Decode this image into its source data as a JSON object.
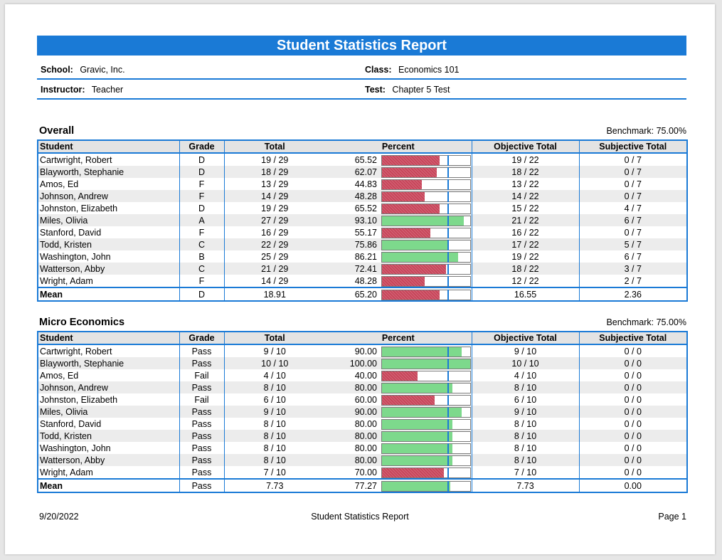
{
  "report": {
    "title": "Student Statistics Report",
    "school_label": "School:",
    "school": "Gravic, Inc.",
    "class_label": "Class:",
    "class": "Economics 101",
    "instructor_label": "Instructor:",
    "instructor": "Teacher",
    "test_label": "Test:",
    "test": "Chapter 5 Test"
  },
  "columns": {
    "student": "Student",
    "grade": "Grade",
    "total": "Total",
    "percent": "Percent",
    "objective": "Objective Total",
    "subjective": "Subjective Total"
  },
  "colors": {
    "accent": "#1a7ad6",
    "below_benchmark": "#c8455a",
    "above_benchmark": "#7dd98c"
  },
  "sections": [
    {
      "title": "Overall",
      "benchmark_text": "Benchmark: 75.00%",
      "benchmark": 75.0,
      "rows": [
        {
          "student": "Cartwright, Robert",
          "grade": "D",
          "total": "19  /  29",
          "percent": "65.52",
          "pct": 65.52,
          "objective": "19  /  22",
          "subjective": "0 / 7"
        },
        {
          "student": "Blayworth, Stephanie",
          "grade": "D",
          "total": "18  /  29",
          "percent": "62.07",
          "pct": 62.07,
          "objective": "18  /  22",
          "subjective": "0 / 7"
        },
        {
          "student": "Amos, Ed",
          "grade": "F",
          "total": "13  /  29",
          "percent": "44.83",
          "pct": 44.83,
          "objective": "13  /  22",
          "subjective": "0 / 7"
        },
        {
          "student": "Johnson, Andrew",
          "grade": "F",
          "total": "14  /  29",
          "percent": "48.28",
          "pct": 48.28,
          "objective": "14  /  22",
          "subjective": "0 / 7"
        },
        {
          "student": "Johnston, Elizabeth",
          "grade": "D",
          "total": "19  /  29",
          "percent": "65.52",
          "pct": 65.52,
          "objective": "15  /  22",
          "subjective": "4 / 7"
        },
        {
          "student": "Miles, Olivia",
          "grade": "A",
          "total": "27  /  29",
          "percent": "93.10",
          "pct": 93.1,
          "objective": "21  /  22",
          "subjective": "6 / 7"
        },
        {
          "student": "Stanford, David",
          "grade": "F",
          "total": "16  /  29",
          "percent": "55.17",
          "pct": 55.17,
          "objective": "16  /  22",
          "subjective": "0 / 7"
        },
        {
          "student": "Todd, Kristen",
          "grade": "C",
          "total": "22  /  29",
          "percent": "75.86",
          "pct": 75.86,
          "objective": "17  /  22",
          "subjective": "5 / 7"
        },
        {
          "student": "Washington, John",
          "grade": "B",
          "total": "25  /  29",
          "percent": "86.21",
          "pct": 86.21,
          "objective": "19  /  22",
          "subjective": "6 / 7"
        },
        {
          "student": "Watterson, Abby",
          "grade": "C",
          "total": "21  /  29",
          "percent": "72.41",
          "pct": 72.41,
          "objective": "18  /  22",
          "subjective": "3 / 7"
        },
        {
          "student": "Wright, Adam",
          "grade": "F",
          "total": "14  /  29",
          "percent": "48.28",
          "pct": 48.28,
          "objective": "12  /  22",
          "subjective": "2 / 7"
        }
      ],
      "mean": {
        "student": "Mean",
        "grade": "D",
        "total": "18.91",
        "percent": "65.20",
        "pct": 65.2,
        "objective": "16.55",
        "subjective": "2.36"
      }
    },
    {
      "title": "Micro Economics",
      "benchmark_text": "Benchmark: 75.00%",
      "benchmark": 75.0,
      "rows": [
        {
          "student": "Cartwright, Robert",
          "grade": "Pass",
          "total": "9  /  10",
          "percent": "90.00",
          "pct": 90.0,
          "objective": "9  /  10",
          "subjective": "0 / 0"
        },
        {
          "student": "Blayworth, Stephanie",
          "grade": "Pass",
          "total": "10  /  10",
          "percent": "100.00",
          "pct": 100.0,
          "objective": "10  /  10",
          "subjective": "0 / 0"
        },
        {
          "student": "Amos, Ed",
          "grade": "Fail",
          "total": "4  /  10",
          "percent": "40.00",
          "pct": 40.0,
          "objective": "4  /  10",
          "subjective": "0 / 0"
        },
        {
          "student": "Johnson, Andrew",
          "grade": "Pass",
          "total": "8  /  10",
          "percent": "80.00",
          "pct": 80.0,
          "objective": "8  /  10",
          "subjective": "0 / 0"
        },
        {
          "student": "Johnston, Elizabeth",
          "grade": "Fail",
          "total": "6  /  10",
          "percent": "60.00",
          "pct": 60.0,
          "objective": "6  /  10",
          "subjective": "0 / 0"
        },
        {
          "student": "Miles, Olivia",
          "grade": "Pass",
          "total": "9  /  10",
          "percent": "90.00",
          "pct": 90.0,
          "objective": "9  /  10",
          "subjective": "0 / 0"
        },
        {
          "student": "Stanford, David",
          "grade": "Pass",
          "total": "8  /  10",
          "percent": "80.00",
          "pct": 80.0,
          "objective": "8  /  10",
          "subjective": "0 / 0"
        },
        {
          "student": "Todd, Kristen",
          "grade": "Pass",
          "total": "8  /  10",
          "percent": "80.00",
          "pct": 80.0,
          "objective": "8  /  10",
          "subjective": "0 / 0"
        },
        {
          "student": "Washington, John",
          "grade": "Pass",
          "total": "8  /  10",
          "percent": "80.00",
          "pct": 80.0,
          "objective": "8  /  10",
          "subjective": "0 / 0"
        },
        {
          "student": "Watterson, Abby",
          "grade": "Pass",
          "total": "8  /  10",
          "percent": "80.00",
          "pct": 80.0,
          "objective": "8  /  10",
          "subjective": "0 / 0"
        },
        {
          "student": "Wright, Adam",
          "grade": "Pass",
          "total": "7  /  10",
          "percent": "70.00",
          "pct": 70.0,
          "objective": "7  /  10",
          "subjective": "0 / 0"
        }
      ],
      "mean": {
        "student": "Mean",
        "grade": "Pass",
        "total": "7.73",
        "percent": "77.27",
        "pct": 77.27,
        "objective": "7.73",
        "subjective": "0.00"
      }
    }
  ],
  "footer": {
    "date": "9/20/2022",
    "title": "Student Statistics Report",
    "page": "Page 1"
  }
}
